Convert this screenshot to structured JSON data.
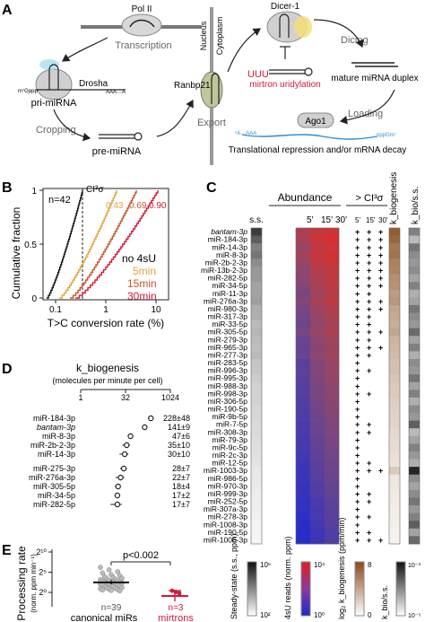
{
  "panelA": {
    "letter": "A",
    "pol2": "Pol II",
    "transcription": "Transcription",
    "drosha": "Drosha",
    "cap": "m⁷Gppp",
    "polyA": "AAA…A",
    "priMirna": "pri-miRNA",
    "cropping": "Cropping",
    "preMirna": "pre-miRNA",
    "nucleus": "Nucleus",
    "cytoplasm": "Cytoplasm",
    "ranbp21": "Ranbp21",
    "export": "Export",
    "dicer": "Dicer-1",
    "dicing": "Dicing",
    "uuu": "UUU",
    "mirtronUridylation": "mirtron uridylation",
    "matureDuplex": "mature miRNA duplex",
    "ago1": "Ago1",
    "loading": "Loading",
    "targetCap": "ⁿA…AAA",
    "targetTail": "pppGm⁷",
    "translationalRepression": "Translational repression and/or mRNA decay"
  },
  "panelB": {
    "letter": "B",
    "n": "n=42",
    "ci": "CI³σ",
    "ylabel": "Cumulative fraction",
    "xlabel": "T>C conversion rate (%)",
    "yticks": [
      "1",
      "0.5",
      "0"
    ],
    "xticks": [
      "0.1",
      "1",
      "10"
    ],
    "fractions": [
      "0.43",
      "0.69",
      "0.90"
    ],
    "legend": [
      "no 4sU",
      "5min",
      "15min",
      "30min"
    ],
    "colors": {
      "no4su": "#111111",
      "min5": "#e2a23a",
      "min15": "#c8532a",
      "min30": "#d0193a"
    }
  },
  "panelC": {
    "letter": "C",
    "abundance": "Abundance",
    "ci": "> CI³σ",
    "ss": "s.s.",
    "times": [
      "5'",
      "15'",
      "30'"
    ],
    "kbio": "k_biogenesis",
    "kbioSs": "k_bio/s.s.",
    "rows": [
      {
        "name": "bantam-3p",
        "ss": 0.85,
        "h": [
          0.72,
          0.82,
          0.88
        ],
        "p": "+++",
        "k": 0.9,
        "r": 0.55
      },
      {
        "name": "miR-184-3p",
        "ss": 0.7,
        "h": [
          0.7,
          0.85,
          0.9
        ],
        "p": "+++",
        "k": 0.85,
        "r": 0.3
      },
      {
        "name": "miR-14-3p",
        "ss": 0.55,
        "h": [
          0.6,
          0.8,
          0.85
        ],
        "p": "+++",
        "k": 0.75,
        "r": 0.6
      },
      {
        "name": "miR-8-3p",
        "ss": 0.6,
        "h": [
          0.68,
          0.82,
          0.88
        ],
        "p": "+++",
        "k": 0.78,
        "r": 0.5
      },
      {
        "name": "miR-2b-2-3p",
        "ss": 0.5,
        "h": [
          0.6,
          0.78,
          0.85
        ],
        "p": "+++",
        "k": 0.7,
        "r": 0.45
      },
      {
        "name": "miR-13b-2-3p",
        "ss": 0.45,
        "h": [
          0.55,
          0.75,
          0.8
        ],
        "p": "+++",
        "k": 0.68,
        "r": 0.5
      },
      {
        "name": "miR-282-5p",
        "ss": 0.45,
        "h": [
          0.55,
          0.72,
          0.8
        ],
        "p": "+++",
        "k": 0.62,
        "r": 0.4
      },
      {
        "name": "miR-34-5p",
        "ss": 0.4,
        "h": [
          0.5,
          0.7,
          0.78
        ],
        "p": "+++",
        "k": 0.6,
        "r": 0.55
      },
      {
        "name": "miR-11-3p",
        "ss": 0.4,
        "h": [
          0.45,
          0.65,
          0.75
        ],
        "p": "++",
        "k": 0.55,
        "r": 0.35
      },
      {
        "name": "miR-276a-3p",
        "ss": 0.42,
        "h": [
          0.5,
          0.68,
          0.78
        ],
        "p": "+++",
        "k": 0.58,
        "r": 0.4
      },
      {
        "name": "miR-980-3p",
        "ss": 0.35,
        "h": [
          0.45,
          0.62,
          0.72
        ],
        "p": "+++",
        "k": 0.5,
        "r": 0.6
      },
      {
        "name": "miR-317-3p",
        "ss": 0.35,
        "h": [
          0.42,
          0.6,
          0.7
        ],
        "p": "++",
        "k": 0.48,
        "r": 0.5
      },
      {
        "name": "miR-33-5p",
        "ss": 0.3,
        "h": [
          0.4,
          0.58,
          0.68
        ],
        "p": "++",
        "k": 0.45,
        "r": 0.45
      },
      {
        "name": "miR-305-5p",
        "ss": 0.32,
        "h": [
          0.45,
          0.6,
          0.7
        ],
        "p": "+++",
        "k": 0.5,
        "r": 0.65
      },
      {
        "name": "miR-279-3p",
        "ss": 0.3,
        "h": [
          0.38,
          0.55,
          0.65
        ],
        "p": "++",
        "k": 0.42,
        "r": 0.4
      },
      {
        "name": "miR-965-3p",
        "ss": 0.28,
        "h": [
          0.35,
          0.52,
          0.62
        ],
        "p": "+++",
        "k": 0.4,
        "r": 0.55
      },
      {
        "name": "miR-277-3p",
        "ss": 0.3,
        "h": [
          0.38,
          0.55,
          0.65
        ],
        "p": "++",
        "k": 0.38,
        "r": 0.35
      },
      {
        "name": "miR-283-5p",
        "ss": 0.25,
        "h": [
          0.3,
          0.5,
          0.6
        ],
        "p": "+",
        "k": 0.35,
        "r": 0.5
      },
      {
        "name": "miR-996-3p",
        "ss": 0.25,
        "h": [
          0.32,
          0.5,
          0.6
        ],
        "p": "++",
        "k": 0.36,
        "r": 0.45
      },
      {
        "name": "miR-995-3p",
        "ss": 0.22,
        "h": [
          0.3,
          0.48,
          0.58
        ],
        "p": "+",
        "k": 0.32,
        "r": 0.6
      },
      {
        "name": "miR-988-3p",
        "ss": 0.2,
        "h": [
          0.28,
          0.45,
          0.55
        ],
        "p": "+",
        "k": 0.3,
        "r": 0.4
      },
      {
        "name": "miR-998-3p",
        "ss": 0.2,
        "h": [
          0.28,
          0.46,
          0.56
        ],
        "p": "++",
        "k": 0.3,
        "r": 0.55
      },
      {
        "name": "miR-306-5p",
        "ss": 0.2,
        "h": [
          0.26,
          0.44,
          0.54
        ],
        "p": "+",
        "k": 0.28,
        "r": 0.35
      },
      {
        "name": "miR-190-5p",
        "ss": 0.18,
        "h": [
          0.25,
          0.42,
          0.52
        ],
        "p": "+",
        "k": 0.26,
        "r": 0.5
      },
      {
        "name": "miR-9b-5p",
        "ss": 0.18,
        "h": [
          0.24,
          0.4,
          0.5
        ],
        "p": "+",
        "k": 0.25,
        "r": 0.45
      },
      {
        "name": "miR-7-5p",
        "ss": 0.16,
        "h": [
          0.22,
          0.38,
          0.48
        ],
        "p": "++",
        "k": 0.24,
        "r": 0.7
      },
      {
        "name": "miR-308-3p",
        "ss": 0.16,
        "h": [
          0.22,
          0.38,
          0.48
        ],
        "p": "++",
        "k": 0.22,
        "r": 0.3
      },
      {
        "name": "miR-79-3p",
        "ss": 0.15,
        "h": [
          0.2,
          0.35,
          0.45
        ],
        "p": "+",
        "k": 0.2,
        "r": 0.4
      },
      {
        "name": "miR-9c-5p",
        "ss": 0.14,
        "h": [
          0.2,
          0.34,
          0.44
        ],
        "p": "+",
        "k": 0.2,
        "r": 0.55
      },
      {
        "name": "miR-2c-3p",
        "ss": 0.13,
        "h": [
          0.18,
          0.32,
          0.42
        ],
        "p": "+",
        "k": 0.18,
        "r": 0.45
      },
      {
        "name": "miR-12-5p",
        "ss": 0.12,
        "h": [
          0.16,
          0.3,
          0.4
        ],
        "p": "++",
        "k": 0.16,
        "r": 0.35
      },
      {
        "name": "miR-1003-3p",
        "ss": 0.1,
        "h": [
          0.15,
          0.3,
          0.4
        ],
        "p": "+++",
        "k": 0.3,
        "r": 0.95
      },
      {
        "name": "miR-986-5p",
        "ss": 0.1,
        "h": [
          0.14,
          0.28,
          0.38
        ],
        "p": "+",
        "k": 0.14,
        "r": 0.5
      },
      {
        "name": "miR-970-3p",
        "ss": 0.09,
        "h": [
          0.12,
          0.26,
          0.36
        ],
        "p": "+",
        "k": 0.13,
        "r": 0.4
      },
      {
        "name": "miR-999-3p",
        "ss": 0.08,
        "h": [
          0.12,
          0.25,
          0.35
        ],
        "p": "++",
        "k": 0.12,
        "r": 0.5
      },
      {
        "name": "miR-252-5p",
        "ss": 0.08,
        "h": [
          0.1,
          0.22,
          0.32
        ],
        "p": "++",
        "k": 0.12,
        "r": 0.6
      },
      {
        "name": "miR-307a-3p",
        "ss": 0.07,
        "h": [
          0.1,
          0.2,
          0.3
        ],
        "p": "+",
        "k": 0.1,
        "r": 0.45
      },
      {
        "name": "miR-278-3p",
        "ss": 0.06,
        "h": [
          0.08,
          0.2,
          0.3
        ],
        "p": "++",
        "k": 0.1,
        "r": 0.55
      },
      {
        "name": "miR-1008-3p",
        "ss": 0.05,
        "h": [
          0.06,
          0.18,
          0.28
        ],
        "p": "+",
        "k": 0.09,
        "r": 0.7
      },
      {
        "name": "miR-190-5p",
        "ss": 0.05,
        "h": [
          0.05,
          0.16,
          0.26
        ],
        "p": "++",
        "k": 0.08,
        "r": 0.4
      },
      {
        "name": "miR-1006-3p",
        "ss": 0.04,
        "h": [
          0.05,
          0.15,
          0.25
        ],
        "p": "+++",
        "k": 0.08,
        "r": 0.65
      }
    ],
    "legendSS": {
      "title": "Steady-state (s.s., ppm)",
      "hi": "10⁶",
      "lo": "10²"
    },
    "legendReads": {
      "title": "4sU reads (norm. ppm)",
      "hi": "10⁴",
      "lo": "10⁰"
    },
    "legendK": {
      "title": "log₂ k_biogenesis (ppm/min)",
      "hi": "8",
      "lo": "0"
    },
    "legendR": {
      "title": "k_bio/s.s.",
      "hi": "10⁻³",
      "lo": "10⁻⁵"
    }
  },
  "panelD": {
    "letter": "D",
    "title": "k_biogenesis",
    "subtitle": "(molecules per minute per cell)",
    "axis": [
      "1",
      "32",
      "1024"
    ],
    "rows": [
      {
        "name": "miR-184-3p",
        "value": 228,
        "err": 48,
        "label": "228±48"
      },
      {
        "name": "bantam-3p",
        "value": 141,
        "err": 9,
        "label": "141±9"
      },
      {
        "name": "miR-8-3p",
        "value": 47,
        "err": 6,
        "label": "47±6"
      },
      {
        "name": "miR-2b-2-3p",
        "value": 35,
        "err": 10,
        "label": "35±10"
      },
      {
        "name": "miR-14-3p",
        "value": 30,
        "err": 10,
        "label": "30±10"
      },
      {
        "name": "miR-275-3p",
        "value": 28,
        "err": 7,
        "label": "28±7"
      },
      {
        "name": "miR-276a-3p",
        "value": 22,
        "err": 7,
        "label": "22±7"
      },
      {
        "name": "miR-305-5p",
        "value": 18,
        "err": 4,
        "label": "18±4"
      },
      {
        "name": "miR-34-5p",
        "value": 17,
        "err": 2,
        "label": "17±2"
      },
      {
        "name": "miR-282-5p",
        "value": 17,
        "err": 7,
        "label": "17±7"
      }
    ]
  },
  "panelE": {
    "letter": "E",
    "ylabel": "Processing rate",
    "yunit": "(norm. ppm min⁻¹)",
    "yticks": [
      "2¹⁰",
      "2⁵",
      "2⁰"
    ],
    "pvalue": "p<0.002",
    "canonicalN": "n=39",
    "mirtronN": "n=3",
    "canonical": "canonical miRs",
    "mirtrons": "mirtrons",
    "canonicalValues": [
      6.2,
      5.6,
      5.1,
      4.8,
      4.4,
      4.1,
      3.9,
      3.7,
      3.5,
      3.3,
      3.2,
      3.1,
      3.0,
      2.9,
      2.8,
      2.7,
      2.6,
      2.5,
      2.4,
      2.3,
      2.2,
      2.1,
      2.0,
      1.9,
      1.8,
      1.7,
      1.6,
      1.5,
      1.4,
      1.3,
      1.2,
      1.1,
      1.0,
      0.9,
      0.8,
      0.7,
      0.6,
      0.5,
      0.4
    ],
    "mirtronValues": [
      -3.6,
      -3.9,
      -4.2
    ],
    "colors": {
      "canonical": "#111111",
      "mirtron": "#d0193a"
    }
  }
}
